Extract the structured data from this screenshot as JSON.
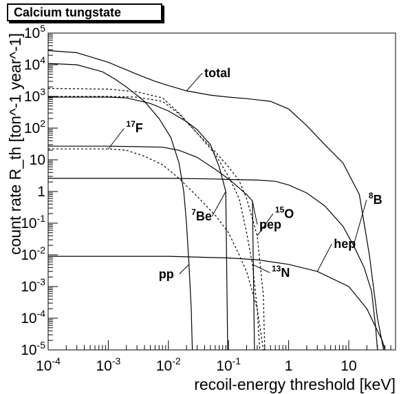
{
  "chart_data": {
    "type": "line",
    "title": "Calcium tungstate",
    "xlabel": "recoil-energy threshold [keV]",
    "ylabel": "count rate R_th [ton^-1 year^-1]",
    "x_scale": "log",
    "y_scale": "log",
    "xlim": [
      0.0001,
      60
    ],
    "ylim": [
      1e-05,
      100000
    ],
    "x_ticks": [
      {
        "base": "10",
        "exp": "-4",
        "value": 0.0001
      },
      {
        "base": "10",
        "exp": "-3",
        "value": 0.001
      },
      {
        "base": "10",
        "exp": "-2",
        "value": 0.01
      },
      {
        "base": "10",
        "exp": "-1",
        "value": 0.1
      },
      {
        "base": "1",
        "exp": "",
        "value": 1
      },
      {
        "base": "10",
        "exp": "",
        "value": 10
      }
    ],
    "y_ticks": [
      {
        "base": "10",
        "exp": "5",
        "value": 100000
      },
      {
        "base": "10",
        "exp": "4",
        "value": 10000
      },
      {
        "base": "10",
        "exp": "3",
        "value": 1000
      },
      {
        "base": "10",
        "exp": "2",
        "value": 100
      },
      {
        "base": "10",
        "exp": "",
        "value": 10
      },
      {
        "base": "1",
        "exp": "",
        "value": 1
      },
      {
        "base": "10",
        "exp": "-1",
        "value": 0.1
      },
      {
        "base": "10",
        "exp": "-2",
        "value": 0.01
      },
      {
        "base": "10",
        "exp": "-3",
        "value": 0.001
      },
      {
        "base": "10",
        "exp": "-4",
        "value": 0.0001
      },
      {
        "base": "10",
        "exp": "-5",
        "value": 1e-05
      }
    ],
    "grid": false,
    "series": [
      {
        "name": "total",
        "style": "solid",
        "x": [
          0.0001,
          0.0003,
          0.001,
          0.003,
          0.006,
          0.01,
          0.02,
          0.05,
          0.1,
          0.2,
          0.5,
          1,
          2,
          4,
          8,
          15,
          22,
          30,
          38
        ],
        "y": [
          28000,
          24000,
          12000,
          5000,
          3000,
          2200,
          1500,
          1100,
          950,
          850,
          700,
          400,
          120,
          30,
          8,
          0.8,
          0.01,
          0.0001,
          1e-05
        ]
      },
      {
        "name": "pp",
        "style": "solid",
        "x": [
          0.0001,
          0.0003,
          0.0008,
          0.0013,
          0.002,
          0.004,
          0.007,
          0.011,
          0.015,
          0.018,
          0.02,
          0.022,
          0.024,
          0.025
        ],
        "y": [
          11000,
          10000,
          6000,
          3500,
          2000,
          700,
          200,
          50,
          8,
          1,
          0.1,
          0.005,
          0.0002,
          1e-05
        ]
      },
      {
        "name": "7Be",
        "style": "solid",
        "x": [
          0.0001,
          0.001,
          0.002,
          0.005,
          0.01,
          0.02,
          0.03,
          0.05,
          0.07,
          0.09,
          0.097
        ],
        "y": [
          950,
          950,
          900,
          600,
          350,
          160,
          90,
          30,
          6,
          1,
          1e-05
        ]
      },
      {
        "name": "pep",
        "style": "solid",
        "x": [
          0.0001,
          0.001,
          0.003,
          0.008,
          0.015,
          0.03,
          0.06,
          0.1,
          0.15,
          0.2,
          0.25,
          0.27
        ],
        "y": [
          27,
          27,
          26,
          25,
          20,
          12,
          5,
          2.5,
          1.3,
          0.8,
          0.5,
          1e-05
        ]
      },
      {
        "name": "8B",
        "style": "solid",
        "x": [
          0.0001,
          0.001,
          0.01,
          0.05,
          0.1,
          0.3,
          0.6,
          1,
          2,
          4,
          8,
          12,
          18,
          24,
          28,
          30
        ],
        "y": [
          2.6,
          2.6,
          2.6,
          2.5,
          2.4,
          2.3,
          2.1,
          1.6,
          0.9,
          0.35,
          0.08,
          0.02,
          0.004,
          0.0007,
          5e-05,
          1e-05
        ]
      },
      {
        "name": "hep",
        "style": "solid",
        "x": [
          0.0001,
          0.001,
          0.01,
          0.1,
          0.3,
          1,
          3,
          10,
          20,
          30,
          36,
          40
        ],
        "y": [
          0.009,
          0.009,
          0.009,
          0.008,
          0.007,
          0.005,
          0.003,
          0.001,
          0.0002,
          4e-05,
          2e-05,
          1e-05
        ]
      },
      {
        "name": "13N",
        "style": "dotted",
        "x": [
          0.0001,
          0.001,
          0.003,
          0.008,
          0.015,
          0.03,
          0.06,
          0.1,
          0.15,
          0.2,
          0.25,
          0.3,
          0.33
        ],
        "y": [
          1800,
          1700,
          1400,
          900,
          300,
          70,
          15,
          3,
          0.6,
          0.05,
          0.005,
          0.0002,
          1e-05
        ]
      },
      {
        "name": "15O",
        "style": "dotted",
        "x": [
          0.0001,
          0.001,
          0.003,
          0.008,
          0.015,
          0.03,
          0.06,
          0.1,
          0.15,
          0.2,
          0.3,
          0.38,
          0.4
        ],
        "y": [
          1000,
          1000,
          950,
          700,
          280,
          70,
          18,
          6,
          2.2,
          0.6,
          0.04,
          0.0005,
          1e-05
        ]
      },
      {
        "name": "17F",
        "style": "dotted",
        "x": [
          0.0001,
          0.001,
          0.002,
          0.004,
          0.008,
          0.015,
          0.03,
          0.06,
          0.1,
          0.15,
          0.2,
          0.3,
          0.38,
          0.4
        ],
        "y": [
          22,
          22,
          20,
          13,
          7,
          2.6,
          0.7,
          0.18,
          0.05,
          0.01,
          0.003,
          0.0002,
          1e-05,
          1e-05
        ]
      }
    ],
    "labels": [
      {
        "series": "total",
        "text": "total",
        "sup": ""
      },
      {
        "series": "8B",
        "text": "B",
        "sup": "8"
      },
      {
        "series": "17F",
        "text": "F",
        "sup": "17"
      },
      {
        "series": "hep",
        "text": "hep",
        "sup": ""
      },
      {
        "series": "15O",
        "text": "O",
        "sup": "15"
      },
      {
        "series": "13N",
        "text": "N",
        "sup": "13"
      },
      {
        "series": "pp",
        "text": "pp",
        "sup": ""
      },
      {
        "series": "7Be",
        "text": "Be",
        "sup": "7"
      },
      {
        "series": "pep",
        "text": "pep",
        "sup": ""
      }
    ]
  }
}
